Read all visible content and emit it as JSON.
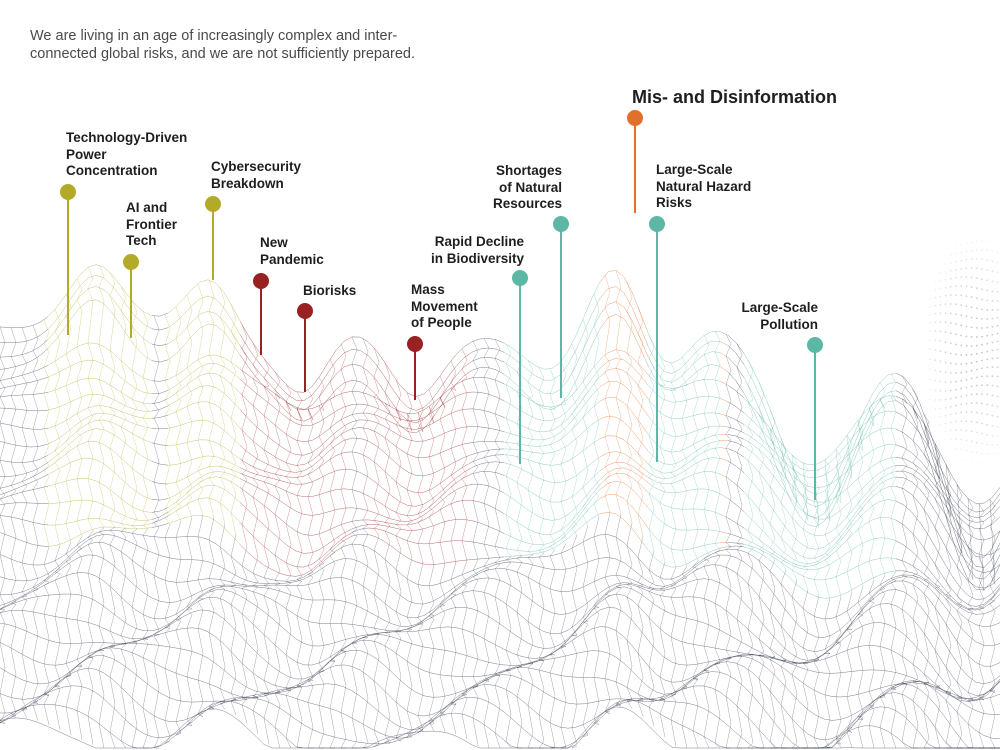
{
  "intro": {
    "lines": [
      "We are living in an age of increasingly complex and inter-",
      "connected global risks, and we are not sufficiently prepared."
    ]
  },
  "colors": {
    "olive": "#b3aa2a",
    "red": "#9a2121",
    "orange": "#e0702a",
    "teal": "#5bb8a4",
    "mesh": "#3a3f55"
  },
  "risks": [
    {
      "id": "tech-power",
      "lines": [
        "Technology-Driven",
        "Power",
        "Concentration"
      ],
      "color": "olive"
    },
    {
      "id": "ai",
      "lines": [
        "AI and",
        "Frontier",
        "Tech"
      ],
      "color": "olive"
    },
    {
      "id": "cyber",
      "lines": [
        "Cybersecurity",
        "Breakdown"
      ],
      "color": "olive"
    },
    {
      "id": "pandemic",
      "lines": [
        "New",
        "Pandemic"
      ],
      "color": "red"
    },
    {
      "id": "biorisks",
      "lines": [
        "Biorisks"
      ],
      "color": "red"
    },
    {
      "id": "migration",
      "lines": [
        "Mass",
        "Movement",
        "of People"
      ],
      "color": "red"
    },
    {
      "id": "biodiversity",
      "lines": [
        "Rapid Decline",
        "in Biodiversity"
      ],
      "color": "teal"
    },
    {
      "id": "resources",
      "lines": [
        "Shortages",
        "of Natural",
        "Resources"
      ],
      "color": "teal"
    },
    {
      "id": "misinfo",
      "lines": [
        "Mis- and Disinformation"
      ],
      "color": "orange"
    },
    {
      "id": "hazard",
      "lines": [
        "Large-Scale",
        "Natural Hazard",
        "Risks"
      ],
      "color": "teal"
    },
    {
      "id": "pollution",
      "lines": [
        "Large-Scale",
        "Pollution"
      ],
      "color": "teal"
    }
  ]
}
